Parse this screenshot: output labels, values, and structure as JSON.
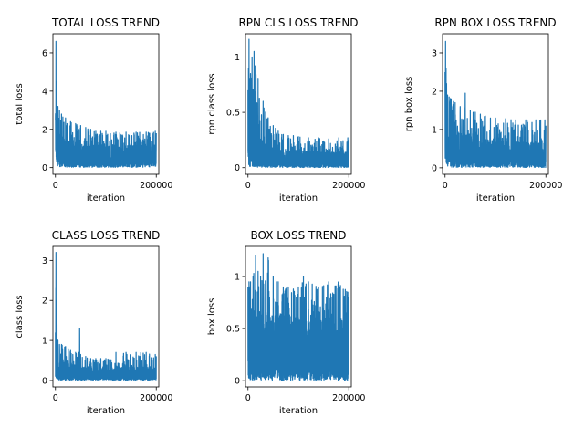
{
  "chart_data": [
    {
      "type": "line",
      "title": "TOTAL LOSS TREND",
      "xlabel": "iteration",
      "ylabel": "total loss",
      "xlim": [
        -5000,
        205000
      ],
      "ylim": [
        -0.35,
        7.0
      ],
      "xticks": [
        0,
        200000
      ],
      "yticks": [
        0,
        2,
        4,
        6
      ],
      "color": "#1f77b4",
      "series": [
        {
          "x": [
            0,
            1000,
            2000,
            3000,
            5000,
            8000,
            12000,
            20000,
            30000,
            40000,
            50000,
            60000,
            70000,
            80000,
            90000,
            100000,
            120000,
            140000,
            160000,
            180000,
            198000,
            200000
          ],
          "upper": [
            3.0,
            6.6,
            4.5,
            3.5,
            3.2,
            3.0,
            2.8,
            2.6,
            2.4,
            2.3,
            2.2,
            2.1,
            2.0,
            1.9,
            1.9,
            1.9,
            1.85,
            1.85,
            1.85,
            1.85,
            1.9,
            1.8
          ],
          "lower": [
            0.3,
            0.2,
            0.15,
            0.1,
            0.08,
            0.05,
            0.05,
            0.03,
            0.02,
            0.02,
            0.02,
            0.02,
            0.02,
            0.02,
            0.02,
            0.02,
            0.02,
            0.02,
            0.02,
            0.02,
            0.02,
            0.02
          ],
          "typical": [
            2.5,
            3.2,
            2.5,
            2.0,
            1.8,
            1.6,
            1.5,
            1.4,
            1.3,
            1.2,
            1.2,
            1.1,
            1.1,
            1.1,
            1.1,
            1.1,
            1.1,
            1.05,
            1.05,
            1.05,
            1.05,
            1.0
          ]
        }
      ]
    },
    {
      "type": "line",
      "title": "RPN CLS LOSS TREND",
      "xlabel": "iteration",
      "ylabel": "rpn class loss",
      "xlim": [
        -5000,
        205000
      ],
      "ylim": [
        -0.06,
        1.21
      ],
      "xticks": [
        0,
        200000
      ],
      "yticks": [
        0.0,
        0.5,
        1.0
      ],
      "color": "#1f77b4",
      "series": [
        {
          "x": [
            0,
            1000,
            2000,
            3000,
            5000,
            8000,
            12000,
            20000,
            30000,
            40000,
            50000,
            60000,
            70000,
            80000,
            90000,
            100000,
            120000,
            140000,
            160000,
            180000,
            198000,
            200000
          ],
          "upper": [
            0.7,
            0.9,
            1.16,
            0.8,
            0.85,
            1.0,
            1.05,
            0.8,
            0.6,
            0.45,
            0.38,
            0.33,
            0.3,
            0.29,
            0.29,
            0.28,
            0.27,
            0.27,
            0.26,
            0.27,
            0.27,
            0.25
          ],
          "lower": [
            0.02,
            0.01,
            0.01,
            0.01,
            0.01,
            0.005,
            0.005,
            0.003,
            0.003,
            0.002,
            0.002,
            0.002,
            0.002,
            0.002,
            0.002,
            0.002,
            0.002,
            0.002,
            0.002,
            0.002,
            0.002,
            0.002
          ],
          "typical": [
            0.5,
            0.6,
            0.65,
            0.55,
            0.5,
            0.45,
            0.4,
            0.3,
            0.22,
            0.18,
            0.16,
            0.15,
            0.15,
            0.14,
            0.14,
            0.14,
            0.14,
            0.13,
            0.13,
            0.13,
            0.13,
            0.12
          ]
        }
      ]
    },
    {
      "type": "line",
      "title": "RPN BOX LOSS TREND",
      "xlabel": "iteration",
      "ylabel": "rpn box loss",
      "xlim": [
        -5000,
        205000
      ],
      "ylim": [
        -0.17,
        3.5
      ],
      "xticks": [
        0,
        200000
      ],
      "yticks": [
        0,
        1,
        2,
        3
      ],
      "color": "#1f77b4",
      "series": [
        {
          "x": [
            0,
            1000,
            2000,
            3000,
            5000,
            8000,
            12000,
            20000,
            30000,
            40000,
            50000,
            60000,
            70000,
            80000,
            90000,
            100000,
            120000,
            140000,
            160000,
            180000,
            198000,
            200000
          ],
          "upper": [
            2.5,
            3.3,
            2.6,
            2.2,
            1.9,
            1.85,
            1.8,
            1.7,
            1.6,
            1.95,
            1.5,
            1.45,
            1.4,
            1.35,
            1.3,
            1.3,
            1.28,
            1.25,
            1.25,
            1.25,
            1.25,
            1.1
          ],
          "lower": [
            0.1,
            0.05,
            0.05,
            0.03,
            0.02,
            0.02,
            0.02,
            0.01,
            0.01,
            0.01,
            0.01,
            0.01,
            0.01,
            0.01,
            0.01,
            0.01,
            0.01,
            0.01,
            0.01,
            0.01,
            0.01,
            0.01
          ],
          "typical": [
            1.8,
            2.0,
            1.6,
            1.3,
            1.2,
            1.1,
            1.0,
            0.9,
            0.85,
            0.8,
            0.75,
            0.7,
            0.7,
            0.68,
            0.66,
            0.65,
            0.65,
            0.63,
            0.62,
            0.62,
            0.62,
            0.6
          ]
        }
      ]
    },
    {
      "type": "line",
      "title": "CLASS LOSS TREND",
      "xlabel": "iteration",
      "ylabel": "class loss",
      "xlim": [
        -5000,
        205000
      ],
      "ylim": [
        -0.16,
        3.35
      ],
      "xticks": [
        0,
        200000
      ],
      "yticks": [
        0,
        1,
        2,
        3
      ],
      "color": "#1f77b4",
      "series": [
        {
          "x": [
            0,
            1000,
            2000,
            3000,
            5000,
            8000,
            12000,
            20000,
            30000,
            40000,
            46000,
            48000,
            50000,
            60000,
            70000,
            80000,
            90000,
            100000,
            120000,
            140000,
            160000,
            180000,
            198000,
            200000
          ],
          "upper": [
            1.2,
            3.2,
            2.0,
            1.4,
            1.0,
            0.9,
            0.9,
            0.85,
            0.75,
            0.7,
            0.7,
            1.3,
            0.65,
            0.6,
            0.55,
            0.55,
            0.55,
            0.55,
            0.7,
            0.7,
            0.7,
            0.7,
            0.65,
            0.6
          ],
          "lower": [
            0.1,
            0.05,
            0.03,
            0.02,
            0.02,
            0.01,
            0.01,
            0.01,
            0.01,
            0.01,
            0.01,
            0.01,
            0.01,
            0.01,
            0.01,
            0.01,
            0.01,
            0.01,
            0.01,
            0.01,
            0.01,
            0.01,
            0.01,
            0.01
          ],
          "typical": [
            0.8,
            1.2,
            0.7,
            0.55,
            0.5,
            0.45,
            0.45,
            0.4,
            0.38,
            0.35,
            0.35,
            0.35,
            0.33,
            0.32,
            0.3,
            0.3,
            0.3,
            0.3,
            0.32,
            0.32,
            0.32,
            0.32,
            0.3,
            0.3
          ]
        }
      ]
    },
    {
      "type": "line",
      "title": "BOX LOSS TREND",
      "xlabel": "iteration",
      "ylabel": "box loss",
      "xlim": [
        -5000,
        205000
      ],
      "ylim": [
        -0.06,
        1.29
      ],
      "xticks": [
        0,
        200000
      ],
      "yticks": [
        0.0,
        0.5,
        1.0
      ],
      "color": "#1f77b4",
      "series": [
        {
          "x": [
            0,
            2000,
            5000,
            10000,
            15000,
            20000,
            25000,
            30000,
            35000,
            40000,
            50000,
            60000,
            70000,
            80000,
            90000,
            100000,
            110000,
            120000,
            140000,
            160000,
            180000,
            198000,
            200000
          ],
          "upper": [
            0.9,
            0.95,
            0.95,
            1.0,
            1.2,
            1.05,
            1.0,
            1.22,
            0.95,
            1.18,
            1.0,
            0.95,
            0.9,
            0.9,
            0.88,
            0.9,
            1.0,
            0.95,
            0.9,
            0.95,
            0.95,
            0.85,
            0.8
          ],
          "lower": [
            0.01,
            0.005,
            0.005,
            0.005,
            0.005,
            0.003,
            0.003,
            0.003,
            0.003,
            0.003,
            0.003,
            0.003,
            0.003,
            0.003,
            0.003,
            0.003,
            0.003,
            0.003,
            0.003,
            0.003,
            0.003,
            0.003,
            0.003
          ],
          "typical": [
            0.6,
            0.65,
            0.65,
            0.65,
            0.65,
            0.62,
            0.6,
            0.6,
            0.6,
            0.6,
            0.58,
            0.58,
            0.57,
            0.57,
            0.56,
            0.56,
            0.56,
            0.55,
            0.55,
            0.55,
            0.55,
            0.55,
            0.55
          ]
        }
      ]
    }
  ]
}
